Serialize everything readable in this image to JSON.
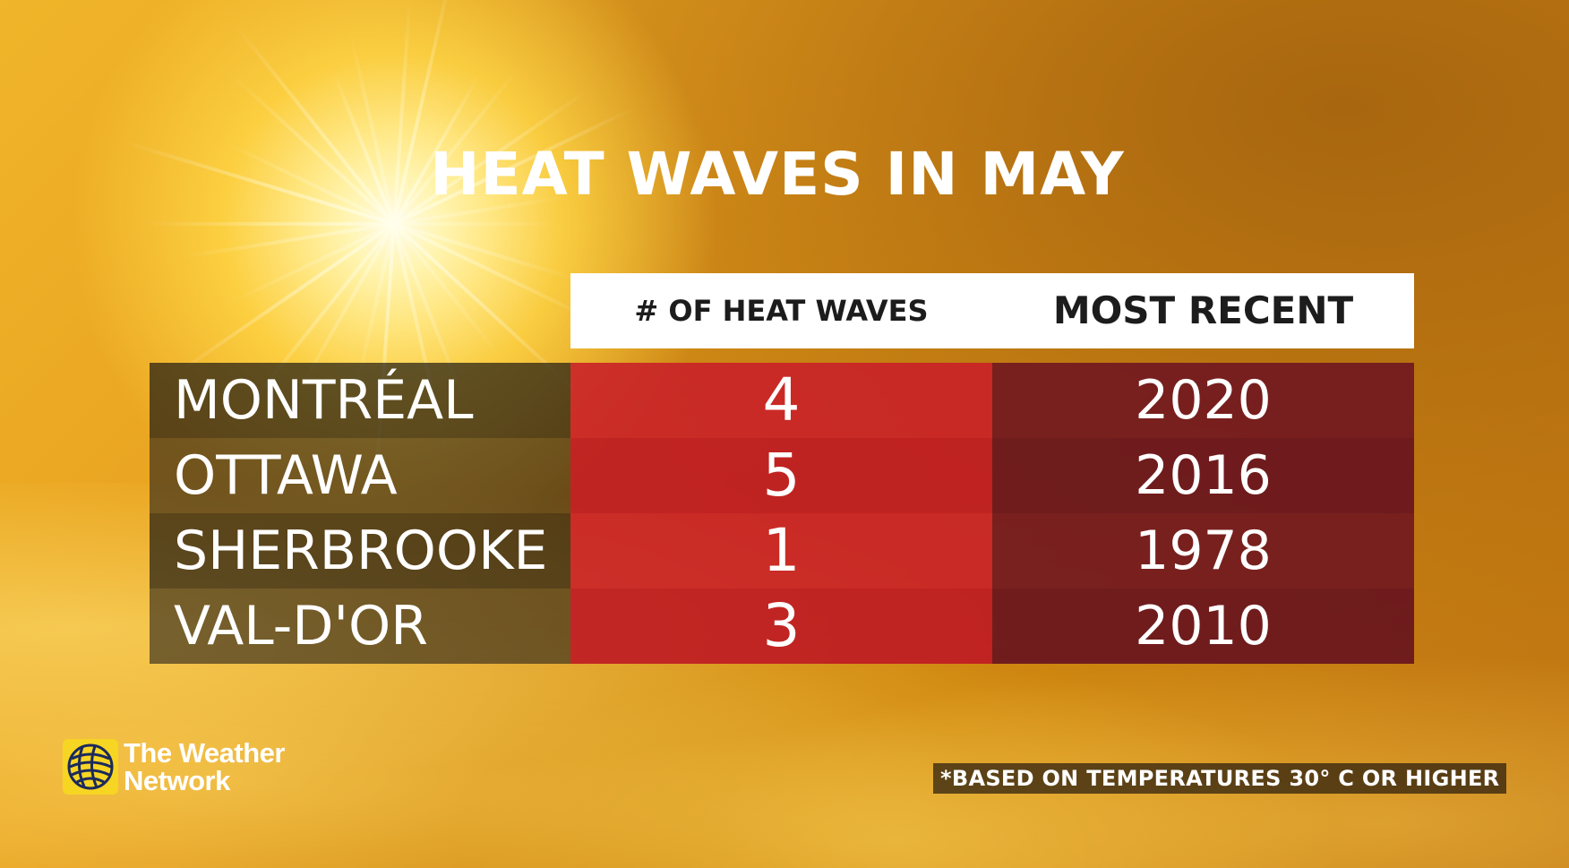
{
  "chart_data": {
    "type": "table",
    "title": "HEAT WAVES IN MAY",
    "columns": [
      "# OF HEAT WAVES",
      "MOST RECENT"
    ],
    "rows": [
      {
        "city": "MONTRÉAL",
        "heat_waves": "4",
        "most_recent": "2020"
      },
      {
        "city": "OTTAWA",
        "heat_waves": "5",
        "most_recent": "2016"
      },
      {
        "city": "SHERBROOKE",
        "heat_waves": "1",
        "most_recent": "1978"
      },
      {
        "city": "VAL-D'OR",
        "heat_waves": "3",
        "most_recent": "2010"
      }
    ],
    "footnote": "*BASED ON TEMPERATURES 30° C OR HIGHER"
  },
  "brand": {
    "line1": "The Weather",
    "line2": "Network"
  },
  "colors": {
    "count_column": "#c81e28",
    "recent_column": "#701620",
    "city_column": "#1c1812",
    "header": "#ffffff",
    "logo_yellow": "#f7d523"
  }
}
